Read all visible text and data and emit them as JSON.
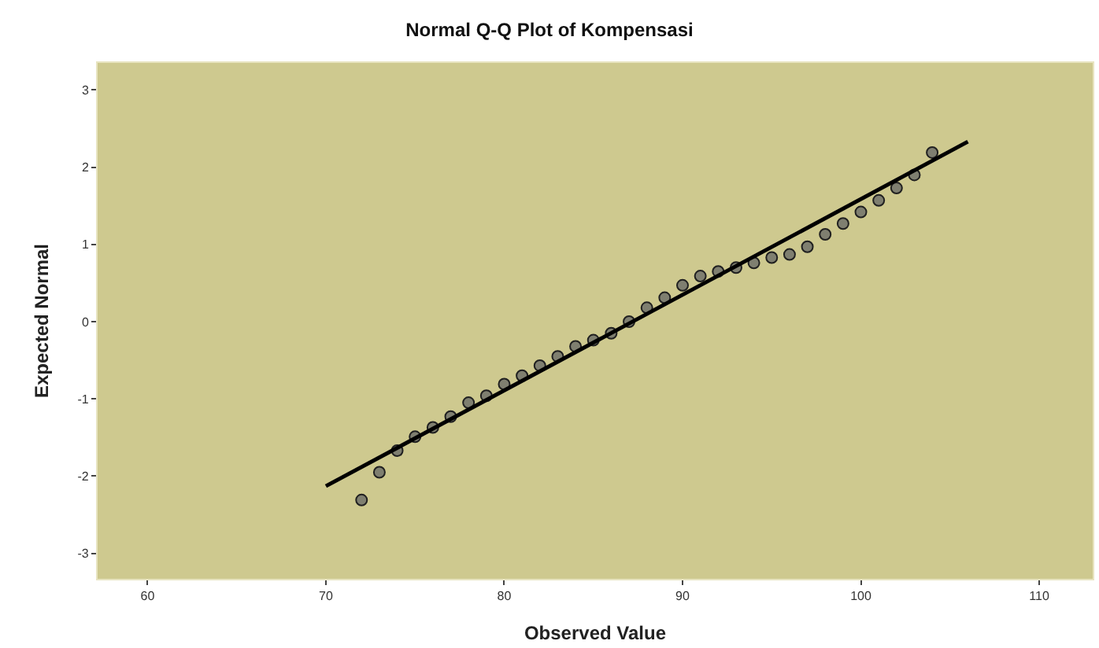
{
  "chart_data": {
    "type": "scatter",
    "title": "Normal Q-Q Plot of Kompensasi",
    "xlabel": "Observed Value",
    "ylabel": "Expected Normal",
    "xlim": [
      57.2,
      113
    ],
    "xticks": [
      60,
      70,
      80,
      90,
      100,
      110
    ],
    "ylim": [
      -3.33,
      3.35
    ],
    "yticks": [
      -3,
      -2,
      -1,
      0,
      1,
      2,
      3
    ],
    "grid": false,
    "marker": "circle",
    "series": [
      {
        "color": "#7f7f70",
        "x": [
          72,
          73,
          74,
          75,
          76,
          77,
          78,
          79,
          80,
          81,
          82,
          83,
          84,
          85,
          86,
          87,
          88,
          89,
          90,
          91,
          92,
          93,
          94,
          95,
          96,
          97,
          98,
          99,
          100,
          101,
          102,
          103,
          104
        ],
        "values": [
          -2.31,
          -1.95,
          -1.67,
          -1.49,
          -1.37,
          -1.23,
          -1.05,
          -0.96,
          -0.81,
          -0.7,
          -0.57,
          -0.45,
          -0.32,
          -0.24,
          -0.15,
          0.0,
          0.18,
          0.31,
          0.47,
          0.59,
          0.65,
          0.7,
          0.76,
          0.83,
          0.87,
          0.97,
          1.13,
          1.27,
          1.42,
          1.57,
          1.73,
          1.9,
          2.19
        ]
      },
      {
        "type": "line",
        "color": "#000000",
        "x": [
          70,
          106
        ],
        "values": [
          -2.13,
          2.33
        ],
        "line_style": "solid",
        "marker": "none"
      }
    ]
  }
}
